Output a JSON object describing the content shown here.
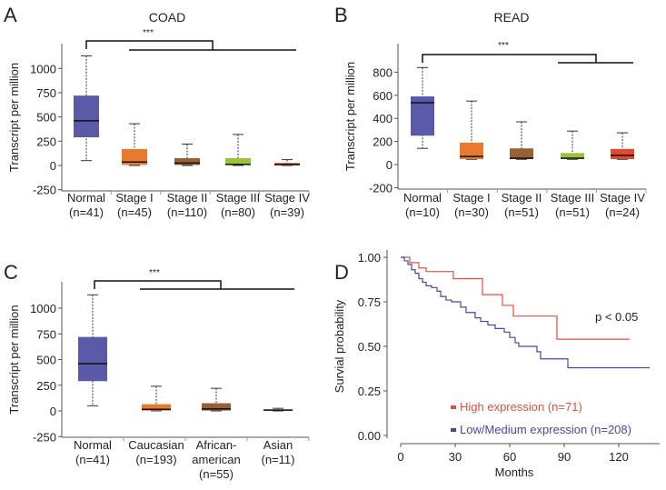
{
  "chart_data": [
    {
      "panel": "A",
      "type": "box",
      "title": "COAD",
      "ylabel": "Transcript per million",
      "yticks": [
        -250,
        0,
        250,
        500,
        750,
        1000
      ],
      "significance": "***",
      "categories": [
        "Normal",
        "Stage I",
        "Stage II",
        "Stage III",
        "Stage IV"
      ],
      "counts": [
        "(n=41)",
        "(n=45)",
        "(n=110)",
        "(n=80)",
        "(n=39)"
      ],
      "colors": [
        "#5a5aa8",
        "#e87a30",
        "#9a6035",
        "#99c43a",
        "#e04a30"
      ],
      "boxes": [
        {
          "min": 50,
          "q1": 290,
          "median": 460,
          "q3": 720,
          "max": 1130
        },
        {
          "min": 0,
          "q1": 5,
          "median": 35,
          "q3": 170,
          "max": 430
        },
        {
          "min": 0,
          "q1": 5,
          "median": 25,
          "q3": 75,
          "max": 220
        },
        {
          "min": 0,
          "q1": 5,
          "median": 10,
          "q3": 75,
          "max": 320
        },
        {
          "min": 0,
          "q1": 0,
          "median": 10,
          "q3": 25,
          "max": 60
        }
      ]
    },
    {
      "panel": "B",
      "type": "box",
      "title": "READ",
      "ylabel": "Transcript per million",
      "yticks": [
        -200,
        0,
        200,
        400,
        600,
        800
      ],
      "significance": "***",
      "categories": [
        "Normal",
        "Stage I",
        "Stage II",
        "Stage III",
        "Stage IV"
      ],
      "counts": [
        "(n=10)",
        "(n=30)",
        "(n=51)",
        "(n=51)",
        "(n=24)"
      ],
      "colors": [
        "#5a5aa8",
        "#e87a30",
        "#9a6035",
        "#99c43a",
        "#e04a30"
      ],
      "boxes": [
        {
          "min": 140,
          "q1": 250,
          "median": 535,
          "q3": 590,
          "max": 840
        },
        {
          "min": 45,
          "q1": 47,
          "median": 70,
          "q3": 190,
          "max": 550
        },
        {
          "min": 45,
          "q1": 47,
          "median": 55,
          "q3": 140,
          "max": 370
        },
        {
          "min": 45,
          "q1": 47,
          "median": 55,
          "q3": 100,
          "max": 290
        },
        {
          "min": 45,
          "q1": 47,
          "median": 80,
          "q3": 135,
          "max": 275
        }
      ]
    },
    {
      "panel": "C",
      "type": "box",
      "title": "",
      "ylabel": "Transcript per million",
      "yticks": [
        -250,
        0,
        250,
        500,
        750,
        1000
      ],
      "significance": "***",
      "categories": [
        "Normal",
        "Caucasian",
        "African-\namerican",
        "Asian"
      ],
      "counts": [
        "(n=41)",
        "(n=193)",
        "(n=55)",
        "(n=11)"
      ],
      "colors": [
        "#5a5aa8",
        "#e87a30",
        "#9a6035",
        "#7a8a4a"
      ],
      "boxes": [
        {
          "min": 50,
          "q1": 290,
          "median": 460,
          "q3": 720,
          "max": 1130
        },
        {
          "min": 0,
          "q1": 3,
          "median": 15,
          "q3": 65,
          "max": 240
        },
        {
          "min": 0,
          "q1": 3,
          "median": 20,
          "q3": 75,
          "max": 220
        },
        {
          "min": 0,
          "q1": 3,
          "median": 8,
          "q3": 15,
          "max": 25
        }
      ]
    },
    {
      "panel": "D",
      "type": "line",
      "subtype": "kaplan-meier",
      "xlabel": "Months",
      "ylabel": "Survial probability",
      "xticks": [
        0,
        30,
        60,
        90,
        120
      ],
      "yticks": [
        "0.00",
        "0.25",
        "0.50",
        "0.75",
        "1.00"
      ],
      "annotation": "p < 0.05",
      "legend_position": "bottom-left",
      "series": [
        {
          "name": "High expression (n=71)",
          "color": "#e05040",
          "x": [
            0,
            5,
            10,
            14,
            29,
            45,
            56,
            62,
            86,
            126
          ],
          "y": [
            1.0,
            0.97,
            0.94,
            0.92,
            0.88,
            0.79,
            0.73,
            0.67,
            0.54,
            0.54
          ]
        },
        {
          "name": "Low/Medium expression (n=208)",
          "color": "#4848a0",
          "x": [
            0,
            2,
            4,
            6,
            8,
            10,
            12,
            14,
            17,
            20,
            22,
            25,
            28,
            33,
            36,
            41,
            44,
            48,
            52,
            57,
            60,
            63,
            65,
            75,
            77,
            92,
            137
          ],
          "y": [
            1.0,
            0.98,
            0.96,
            0.93,
            0.91,
            0.88,
            0.86,
            0.84,
            0.83,
            0.81,
            0.78,
            0.76,
            0.75,
            0.72,
            0.69,
            0.66,
            0.64,
            0.62,
            0.6,
            0.58,
            0.55,
            0.52,
            0.5,
            0.47,
            0.43,
            0.38,
            0.38
          ]
        }
      ]
    }
  ]
}
